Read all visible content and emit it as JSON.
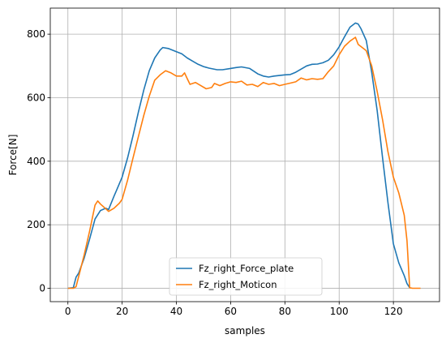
{
  "chart_data": {
    "type": "line",
    "title": "",
    "xlabel": "samples",
    "ylabel": "Force[N]",
    "xlim": [
      -6.5,
      137
    ],
    "ylim": [
      -42,
      882
    ],
    "xticks": [
      0,
      20,
      40,
      60,
      80,
      100,
      120
    ],
    "yticks": [
      0,
      200,
      400,
      600,
      800
    ],
    "grid": true,
    "legend": "bottom-center",
    "series": [
      {
        "name": "Fz_right_Force_plate",
        "color": "#1f77b4",
        "points": [
          [
            0,
            0
          ],
          [
            2,
            2
          ],
          [
            3,
            35
          ],
          [
            4,
            48
          ],
          [
            6,
            95
          ],
          [
            8,
            155
          ],
          [
            10,
            218
          ],
          [
            12,
            245
          ],
          [
            14,
            252
          ],
          [
            15,
            248
          ],
          [
            17,
            290
          ],
          [
            18,
            310
          ],
          [
            20,
            350
          ],
          [
            22,
            410
          ],
          [
            24,
            480
          ],
          [
            26,
            555
          ],
          [
            28,
            625
          ],
          [
            30,
            685
          ],
          [
            32,
            725
          ],
          [
            34,
            750
          ],
          [
            35,
            758
          ],
          [
            37,
            755
          ],
          [
            40,
            745
          ],
          [
            42,
            738
          ],
          [
            44,
            725
          ],
          [
            46,
            715
          ],
          [
            48,
            705
          ],
          [
            50,
            698
          ],
          [
            52,
            693
          ],
          [
            55,
            688
          ],
          [
            57,
            688
          ],
          [
            60,
            692
          ],
          [
            62,
            695
          ],
          [
            64,
            697
          ],
          [
            67,
            692
          ],
          [
            70,
            675
          ],
          [
            72,
            668
          ],
          [
            74,
            665
          ],
          [
            76,
            668
          ],
          [
            78,
            670
          ],
          [
            80,
            672
          ],
          [
            82,
            673
          ],
          [
            84,
            680
          ],
          [
            86,
            690
          ],
          [
            88,
            700
          ],
          [
            90,
            705
          ],
          [
            92,
            706
          ],
          [
            94,
            710
          ],
          [
            96,
            718
          ],
          [
            98,
            735
          ],
          [
            100,
            760
          ],
          [
            102,
            792
          ],
          [
            104,
            822
          ],
          [
            106,
            835
          ],
          [
            107,
            832
          ],
          [
            108,
            818
          ],
          [
            110,
            780
          ],
          [
            112,
            680
          ],
          [
            114,
            560
          ],
          [
            116,
            410
          ],
          [
            118,
            270
          ],
          [
            120,
            140
          ],
          [
            122,
            80
          ],
          [
            124,
            40
          ],
          [
            125,
            15
          ],
          [
            126,
            2
          ]
        ]
      },
      {
        "name": "Fz_right_Moticon",
        "color": "#ff7f0e",
        "points": [
          [
            0,
            0
          ],
          [
            2,
            0
          ],
          [
            3,
            5
          ],
          [
            4,
            38
          ],
          [
            6,
            105
          ],
          [
            8,
            180
          ],
          [
            10,
            262
          ],
          [
            11,
            275
          ],
          [
            12,
            265
          ],
          [
            14,
            250
          ],
          [
            15,
            242
          ],
          [
            17,
            252
          ],
          [
            19,
            268
          ],
          [
            20,
            280
          ],
          [
            22,
            340
          ],
          [
            24,
            410
          ],
          [
            26,
            478
          ],
          [
            28,
            545
          ],
          [
            30,
            605
          ],
          [
            32,
            655
          ],
          [
            34,
            672
          ],
          [
            36,
            685
          ],
          [
            38,
            678
          ],
          [
            40,
            668
          ],
          [
            42,
            668
          ],
          [
            43,
            678
          ],
          [
            44,
            660
          ],
          [
            45,
            642
          ],
          [
            47,
            648
          ],
          [
            49,
            638
          ],
          [
            51,
            628
          ],
          [
            53,
            632
          ],
          [
            54,
            645
          ],
          [
            56,
            638
          ],
          [
            58,
            645
          ],
          [
            60,
            650
          ],
          [
            62,
            648
          ],
          [
            64,
            652
          ],
          [
            66,
            640
          ],
          [
            68,
            642
          ],
          [
            70,
            635
          ],
          [
            72,
            648
          ],
          [
            74,
            642
          ],
          [
            76,
            645
          ],
          [
            78,
            638
          ],
          [
            80,
            642
          ],
          [
            82,
            646
          ],
          [
            84,
            650
          ],
          [
            86,
            662
          ],
          [
            88,
            656
          ],
          [
            90,
            660
          ],
          [
            92,
            658
          ],
          [
            94,
            660
          ],
          [
            96,
            682
          ],
          [
            98,
            700
          ],
          [
            100,
            735
          ],
          [
            102,
            762
          ],
          [
            104,
            778
          ],
          [
            106,
            790
          ],
          [
            107,
            768
          ],
          [
            110,
            748
          ],
          [
            112,
            700
          ],
          [
            114,
            620
          ],
          [
            116,
            530
          ],
          [
            118,
            430
          ],
          [
            120,
            350
          ],
          [
            122,
            300
          ],
          [
            124,
            230
          ],
          [
            125,
            150
          ],
          [
            126,
            2
          ],
          [
            127,
            0
          ],
          [
            130,
            0
          ]
        ]
      }
    ]
  }
}
